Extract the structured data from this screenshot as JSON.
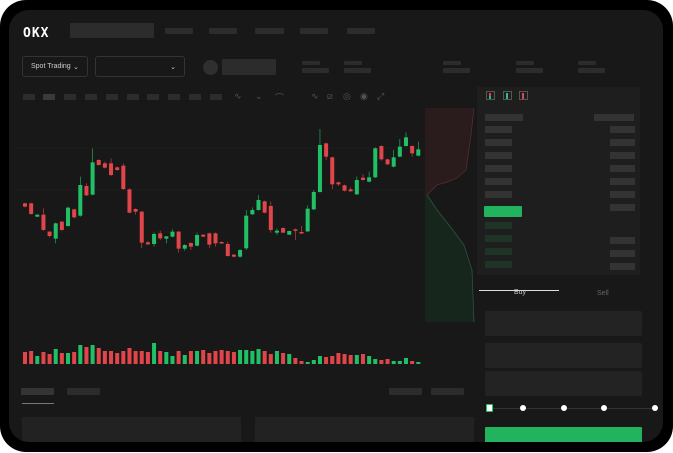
{
  "header": {
    "logo": "OKX"
  },
  "market": {
    "type_label": "Spot Trading"
  },
  "trade": {
    "buy_label": "Buy",
    "sell_label": "Sell",
    "leverage_steps": 5,
    "selected_step": 0
  },
  "colors": {
    "up": "#22c066",
    "down": "#e0454a",
    "accent": "#22b35e",
    "background": "#181818"
  },
  "icons": [
    "chevron-down-icon",
    "indicator-icon",
    "draw-line-icon",
    "ruler-icon",
    "camera-icon",
    "settings-icon",
    "fullscreen-icon",
    "orderbook-both-icon",
    "orderbook-bids-icon",
    "orderbook-asks-icon"
  ],
  "chart_data": {
    "type": "candlestick",
    "ohlc_fields": [
      "open",
      "close",
      "high",
      "low"
    ],
    "candles": [
      [
        200,
        190,
        202,
        188
      ],
      [
        200,
        168,
        202,
        166
      ],
      [
        160,
        166,
        167,
        159
      ],
      [
        166,
        120,
        185,
        118
      ],
      [
        115,
        102,
        117,
        98
      ],
      [
        94,
        140,
        142,
        80
      ],
      [
        145,
        120,
        147,
        118
      ],
      [
        132,
        187,
        190,
        130
      ],
      [
        182,
        158,
        184,
        155
      ],
      [
        163,
        255,
        280,
        160
      ],
      [
        252,
        224,
        260,
        222
      ],
      [
        226,
        323,
        365,
        224
      ],
      [
        330,
        315,
        332,
        313
      ],
      [
        320,
        307,
        325,
        305
      ],
      [
        320,
        285,
        335,
        282
      ],
      [
        308,
        300,
        310,
        298
      ],
      [
        313,
        243,
        320,
        240
      ],
      [
        242,
        172,
        245,
        170
      ],
      [
        183,
        175,
        185,
        166
      ],
      [
        175,
        82,
        177,
        66
      ],
      [
        83,
        77,
        87,
        75
      ],
      [
        78,
        108,
        112,
        70
      ],
      [
        110,
        95,
        118,
        90
      ],
      [
        94,
        101,
        102,
        80
      ],
      [
        100,
        115,
        122,
        98
      ],
      [
        115,
        64,
        117,
        52
      ],
      [
        64,
        75,
        77,
        58
      ],
      [
        81,
        70,
        83,
        60
      ],
      [
        73,
        105,
        112,
        71
      ],
      [
        106,
        100,
        107,
        99
      ],
      [
        110,
        76,
        112,
        66
      ],
      [
        110,
        80,
        112,
        70
      ],
      [
        84,
        80,
        85,
        79
      ],
      [
        78,
        42,
        85,
        40
      ],
      [
        46,
        40,
        48,
        38
      ],
      [
        40,
        60,
        62,
        37
      ],
      [
        65,
        163,
        180,
        60
      ],
      [
        167,
        180,
        188,
        165
      ],
      [
        180,
        210,
        225,
        178
      ],
      [
        206,
        172,
        208,
        170
      ],
      [
        192,
        120,
        205,
        112
      ],
      [
        112,
        118,
        125,
        105
      ],
      [
        126,
        112,
        127,
        111
      ],
      [
        106,
        117,
        118,
        105
      ],
      [
        122,
        118,
        124,
        90
      ],
      [
        114,
        110,
        132,
        108
      ],
      [
        116,
        184,
        194,
        114
      ],
      [
        182,
        234,
        240,
        180
      ],
      [
        234,
        375,
        423,
        232
      ],
      [
        380,
        340,
        382,
        330
      ],
      [
        338,
        257,
        340,
        243
      ],
      [
        263,
        257,
        265,
        252
      ],
      [
        254,
        238,
        256,
        235
      ],
      [
        242,
        236,
        248,
        235
      ],
      [
        227,
        270,
        280,
        225
      ],
      [
        277,
        270,
        288,
        268
      ],
      [
        265,
        278,
        295,
        263
      ],
      [
        278,
        365,
        368,
        276
      ],
      [
        372,
        332,
        374,
        328
      ],
      [
        332,
        317,
        334,
        315
      ],
      [
        310,
        338,
        360,
        308
      ],
      [
        340,
        370,
        393,
        338
      ],
      [
        372,
        398,
        413,
        370
      ],
      [
        372,
        350,
        374,
        340
      ],
      [
        343,
        362,
        385,
        341
      ]
    ],
    "volume": [
      12,
      13,
      8,
      12,
      10,
      15,
      11,
      11,
      12,
      19,
      17,
      19,
      16,
      13,
      13,
      11,
      13,
      16,
      13,
      13,
      12,
      21,
      13,
      12,
      8,
      13,
      9,
      13,
      13,
      14,
      11,
      13,
      14,
      13,
      12,
      14,
      14,
      13,
      15,
      13,
      10,
      13,
      11,
      10,
      6,
      3,
      2,
      4,
      8,
      7,
      8,
      11,
      10,
      9,
      9,
      10,
      8,
      5,
      4,
      5,
      3,
      3,
      6,
      3,
      2
    ]
  }
}
